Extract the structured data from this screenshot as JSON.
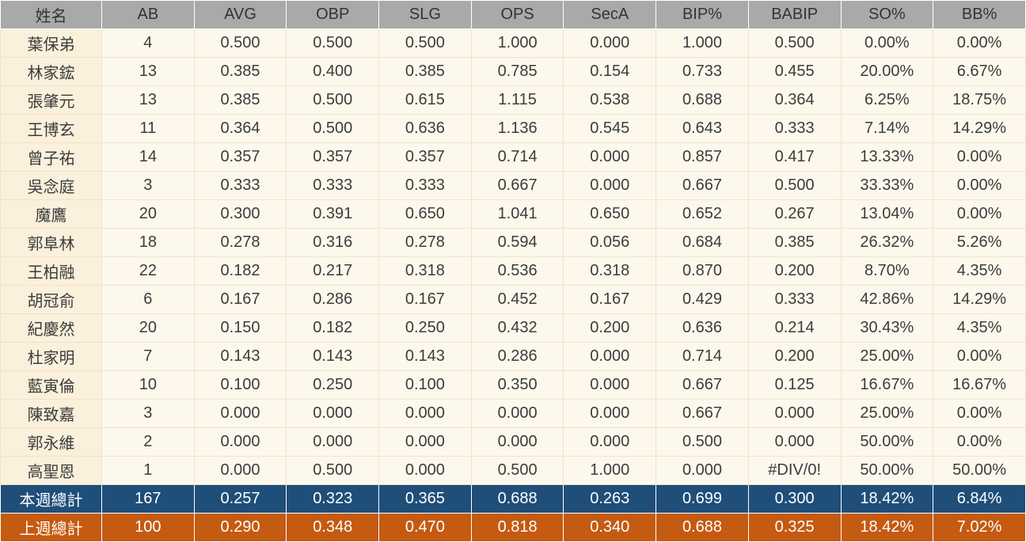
{
  "colors": {
    "header_bg": "#a9a9a9",
    "body_bg": "#fdf8ec",
    "name_col_bg": "#faf0db",
    "week_total_bg": "#1f4e79",
    "prev_total_bg": "#c55a11",
    "total_text": "#ffffff"
  },
  "chart_data": {
    "type": "table",
    "columns": [
      "姓名",
      "AB",
      "AVG",
      "OBP",
      "SLG",
      "OPS",
      "SecA",
      "BIP%",
      "BABIP",
      "SO%",
      "BB%"
    ],
    "rows": [
      [
        "葉保弟",
        "4",
        "0.500",
        "0.500",
        "0.500",
        "1.000",
        "0.000",
        "1.000",
        "0.500",
        "0.00%",
        "0.00%"
      ],
      [
        "林家鋐",
        "13",
        "0.385",
        "0.400",
        "0.385",
        "0.785",
        "0.154",
        "0.733",
        "0.455",
        "20.00%",
        "6.67%"
      ],
      [
        "張肇元",
        "13",
        "0.385",
        "0.500",
        "0.615",
        "1.115",
        "0.538",
        "0.688",
        "0.364",
        "6.25%",
        "18.75%"
      ],
      [
        "王博玄",
        "11",
        "0.364",
        "0.500",
        "0.636",
        "1.136",
        "0.545",
        "0.643",
        "0.333",
        "7.14%",
        "14.29%"
      ],
      [
        "曾子祐",
        "14",
        "0.357",
        "0.357",
        "0.357",
        "0.714",
        "0.000",
        "0.857",
        "0.417",
        "13.33%",
        "0.00%"
      ],
      [
        "吳念庭",
        "3",
        "0.333",
        "0.333",
        "0.333",
        "0.667",
        "0.000",
        "0.667",
        "0.500",
        "33.33%",
        "0.00%"
      ],
      [
        "魔鷹",
        "20",
        "0.300",
        "0.391",
        "0.650",
        "1.041",
        "0.650",
        "0.652",
        "0.267",
        "13.04%",
        "0.00%"
      ],
      [
        "郭阜林",
        "18",
        "0.278",
        "0.316",
        "0.278",
        "0.594",
        "0.056",
        "0.684",
        "0.385",
        "26.32%",
        "5.26%"
      ],
      [
        "王柏融",
        "22",
        "0.182",
        "0.217",
        "0.318",
        "0.536",
        "0.318",
        "0.870",
        "0.200",
        "8.70%",
        "4.35%"
      ],
      [
        "胡冠俞",
        "6",
        "0.167",
        "0.286",
        "0.167",
        "0.452",
        "0.167",
        "0.429",
        "0.333",
        "42.86%",
        "14.29%"
      ],
      [
        "紀慶然",
        "20",
        "0.150",
        "0.182",
        "0.250",
        "0.432",
        "0.200",
        "0.636",
        "0.214",
        "30.43%",
        "4.35%"
      ],
      [
        "杜家明",
        "7",
        "0.143",
        "0.143",
        "0.143",
        "0.286",
        "0.000",
        "0.714",
        "0.200",
        "25.00%",
        "0.00%"
      ],
      [
        "藍寅倫",
        "10",
        "0.100",
        "0.250",
        "0.100",
        "0.350",
        "0.000",
        "0.667",
        "0.125",
        "16.67%",
        "16.67%"
      ],
      [
        "陳致嘉",
        "3",
        "0.000",
        "0.000",
        "0.000",
        "0.000",
        "0.000",
        "0.667",
        "0.000",
        "25.00%",
        "0.00%"
      ],
      [
        "郭永維",
        "2",
        "0.000",
        "0.000",
        "0.000",
        "0.000",
        "0.000",
        "0.500",
        "0.000",
        "50.00%",
        "0.00%"
      ],
      [
        "高聖恩",
        "1",
        "0.000",
        "0.500",
        "0.000",
        "0.500",
        "1.000",
        "0.000",
        "#DIV/0!",
        "50.00%",
        "50.00%"
      ]
    ],
    "total_rows": [
      {
        "label": "本週總計",
        "values": [
          "167",
          "0.257",
          "0.323",
          "0.365",
          "0.688",
          "0.263",
          "0.699",
          "0.300",
          "18.42%",
          "6.84%"
        ],
        "bg": "#1f4e79"
      },
      {
        "label": "上週總計",
        "values": [
          "100",
          "0.290",
          "0.348",
          "0.470",
          "0.818",
          "0.340",
          "0.688",
          "0.325",
          "18.42%",
          "7.02%"
        ],
        "bg": "#c55a11"
      }
    ]
  }
}
